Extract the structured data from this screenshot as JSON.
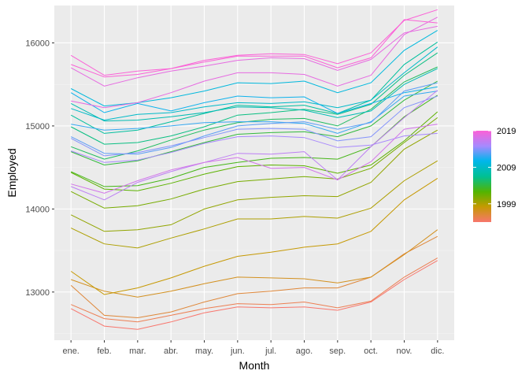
{
  "chart_data": {
    "type": "line",
    "title": "",
    "xlabel": "Month",
    "ylabel": "Employed",
    "categories": [
      "ene.",
      "feb.",
      "mar.",
      "abr.",
      "may.",
      "jun.",
      "jul.",
      "ago.",
      "sep.",
      "oct.",
      "nov.",
      "dic."
    ],
    "ylim": [
      12420,
      16450
    ],
    "yticks": [
      13000,
      14000,
      15000,
      16000
    ],
    "y_tick_labels": [
      "13000",
      "14000",
      "15000",
      "16000"
    ],
    "grid": true,
    "legend": {
      "type": "colorbar",
      "placement": "right",
      "min": 1994,
      "max": 2019,
      "ticks": [
        1999,
        2009,
        2019
      ],
      "tick_labels": [
        "1999",
        "2009",
        "2019"
      ]
    },
    "colors": {
      "panel_background": "#ebebeb",
      "grid_major": "#ffffff",
      "grid_minor": "#f4f4f4",
      "gradient_stops": [
        "#f8766d",
        "#c49a00",
        "#53b400",
        "#00c094",
        "#00b6eb",
        "#a58aff",
        "#fb61d7"
      ]
    },
    "series": [
      {
        "year": 1994,
        "values": [
          12800,
          12590,
          12550,
          12640,
          12750,
          12820,
          12810,
          12820,
          12780,
          12880,
          13150,
          13380
        ]
      },
      {
        "year": 1995,
        "values": [
          12850,
          12680,
          12640,
          12720,
          12800,
          12860,
          12850,
          12880,
          12810,
          12890,
          13180,
          13410
        ]
      },
      {
        "year": 1996,
        "values": [
          13080,
          12720,
          12690,
          12760,
          12880,
          12980,
          13010,
          13050,
          13050,
          13180,
          13460,
          13670
        ]
      },
      {
        "year": 1997,
        "values": [
          13150,
          13010,
          12940,
          13010,
          13100,
          13180,
          13170,
          13160,
          13110,
          13180,
          13450,
          13750
        ]
      },
      {
        "year": 1998,
        "values": [
          13250,
          12970,
          13050,
          13170,
          13310,
          13430,
          13480,
          13540,
          13580,
          13730,
          14110,
          14370
        ]
      },
      {
        "year": 1999,
        "values": [
          13770,
          13580,
          13530,
          13650,
          13760,
          13880,
          13880,
          13910,
          13890,
          14010,
          14340,
          14580
        ]
      },
      {
        "year": 2000,
        "values": [
          13930,
          13730,
          13750,
          13810,
          14000,
          14110,
          14140,
          14160,
          14150,
          14320,
          14720,
          14950
        ]
      },
      {
        "year": 2001,
        "values": [
          14210,
          14010,
          14040,
          14120,
          14240,
          14330,
          14360,
          14390,
          14360,
          14490,
          14800,
          15100
        ]
      },
      {
        "year": 2002,
        "values": [
          14440,
          14240,
          14220,
          14310,
          14420,
          14510,
          14530,
          14520,
          14430,
          14530,
          14820,
          15170
        ]
      },
      {
        "year": 2003,
        "values": [
          14450,
          14270,
          14280,
          14370,
          14500,
          14560,
          14610,
          14620,
          14600,
          14750,
          15110,
          15370
        ]
      },
      {
        "year": 2004,
        "values": [
          14690,
          14530,
          14580,
          14690,
          14800,
          14900,
          14920,
          14930,
          14870,
          15000,
          15310,
          15540
        ]
      },
      {
        "year": 2005,
        "values": [
          14750,
          14600,
          14700,
          14830,
          14950,
          15040,
          15080,
          15090,
          15000,
          15200,
          15530,
          15710
        ]
      },
      {
        "year": 2006,
        "values": [
          14990,
          14780,
          14800,
          14880,
          14990,
          15130,
          15160,
          15200,
          15140,
          15260,
          15610,
          15880
        ]
      },
      {
        "year": 2007,
        "values": [
          15130,
          14910,
          14950,
          15050,
          15150,
          15250,
          15230,
          15250,
          15150,
          15310,
          15740,
          16010
        ]
      },
      {
        "year": 2008,
        "values": [
          15270,
          15060,
          15070,
          15110,
          15160,
          15230,
          15220,
          15190,
          15100,
          15180,
          15500,
          15690
        ]
      },
      {
        "year": 2009,
        "values": [
          15210,
          15070,
          15140,
          15160,
          15230,
          15280,
          15270,
          15290,
          15220,
          15310,
          15640,
          15950
        ]
      },
      {
        "year": 2010,
        "values": [
          15450,
          15240,
          15280,
          15340,
          15420,
          15520,
          15510,
          15540,
          15400,
          15520,
          15910,
          16150
        ]
      },
      {
        "year": 2011,
        "values": [
          15400,
          15160,
          15270,
          15180,
          15280,
          15360,
          15340,
          15350,
          15150,
          15270,
          15400,
          15470
        ]
      },
      {
        "year": 2012,
        "values": [
          15020,
          14950,
          14970,
          15000,
          15040,
          15050,
          15050,
          15030,
          14910,
          15050,
          15360,
          15420
        ]
      },
      {
        "year": 2013,
        "values": [
          14870,
          14670,
          14660,
          14740,
          14880,
          15000,
          15030,
          15050,
          14960,
          15040,
          15420,
          15520
        ]
      },
      {
        "year": 2014,
        "values": [
          14850,
          14640,
          14680,
          14760,
          14860,
          14960,
          14970,
          14960,
          14820,
          14870,
          15220,
          15360
        ]
      },
      {
        "year": 2015,
        "values": [
          14700,
          14560,
          14590,
          14680,
          14790,
          14870,
          14880,
          14860,
          14740,
          14770,
          14880,
          14910
        ]
      },
      {
        "year": 2016,
        "values": [
          14270,
          14110,
          14320,
          14450,
          14560,
          14670,
          14660,
          14690,
          14350,
          14750,
          15100,
          15430
        ]
      },
      {
        "year": 2017,
        "values": [
          14300,
          14190,
          14340,
          14470,
          14560,
          14620,
          14490,
          14500,
          14350,
          14570,
          14960,
          15020
        ]
      },
      {
        "year": 2018,
        "values": [
          15300,
          15220,
          15280,
          15400,
          15540,
          15640,
          15640,
          15620,
          15480,
          15610,
          16100,
          16310
        ]
      },
      {
        "year": 2019,
        "values": [
          15740,
          15590,
          15620,
          15690,
          15790,
          15850,
          15870,
          15860,
          15750,
          15880,
          16270,
          16400
        ]
      },
      {
        "year": 2019,
        "values": [
          15850,
          15610,
          15660,
          15690,
          15770,
          15840,
          15840,
          15840,
          15700,
          15820,
          16280,
          16240
        ]
      },
      {
        "year": 2018,
        "values": [
          15700,
          15480,
          15580,
          15660,
          15720,
          15790,
          15820,
          15810,
          15670,
          15800,
          16120,
          16200
        ]
      }
    ]
  }
}
